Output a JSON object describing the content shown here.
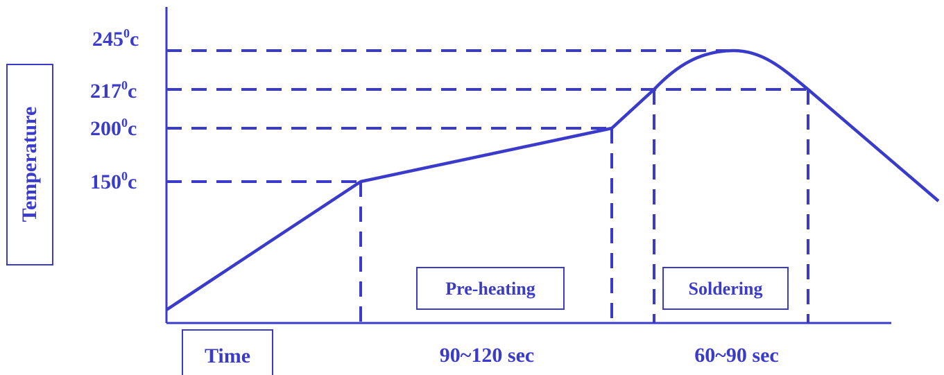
{
  "color": "#3a3acb",
  "y_axis_label": "Temperature",
  "x_axis_label": "Time",
  "temperatures": [
    {
      "value": "245",
      "sup": "0",
      "unit": "c"
    },
    {
      "value": "217",
      "sup": "0",
      "unit": "c"
    },
    {
      "value": "200",
      "sup": "0",
      "unit": "c"
    },
    {
      "value": "150",
      "sup": "0",
      "unit": "c"
    }
  ],
  "zones": {
    "preheat_label": "Pre-heating",
    "soldering_label": "Soldering"
  },
  "durations": {
    "preheat": "90~120 sec",
    "soldering": "60~90 sec"
  }
}
